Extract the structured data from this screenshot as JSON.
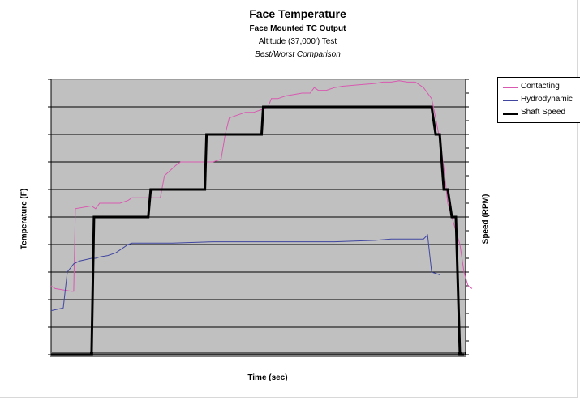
{
  "chart_data": {
    "type": "line",
    "title": "Face Temperature",
    "subtitles": [
      "Face Mounted TC Output",
      "Altitude (37,000') Test",
      "Best/Worst Comparison"
    ],
    "xlabel": "Time (sec)",
    "ylabel": "Temperature (F)",
    "y2label": "Speed (RPM)",
    "grid": true,
    "legend_position": "right",
    "series": [
      {
        "name": "Contacting",
        "axis": "left",
        "color": "#d85ab0",
        "x": [
          0,
          5,
          25,
          28,
          30,
          50,
          55,
          60,
          70,
          85,
          95,
          100,
          120,
          130,
          135,
          140,
          155,
          160,
          170,
          180,
          190,
          200,
          210,
          215,
          220,
          230,
          240,
          250,
          260,
          268,
          272,
          280,
          290,
          300,
          310,
          320,
          325,
          330,
          340,
          350,
          360,
          380,
          400,
          410,
          420,
          430,
          440,
          450,
          460,
          470,
          475,
          480,
          485,
          490,
          500,
          505,
          510,
          515,
          520
        ],
        "values": [
          2.5,
          2.4,
          2.3,
          2.3,
          5.3,
          5.4,
          5.3,
          5.5,
          5.5,
          5.5,
          5.6,
          5.7,
          5.7,
          5.7,
          5.7,
          6.5,
          6.9,
          7.0,
          7.0,
          7.0,
          7.0,
          7.0,
          7.1,
          8.0,
          8.6,
          8.7,
          8.8,
          8.8,
          8.9,
          9.0,
          9.3,
          9.3,
          9.4,
          9.45,
          9.5,
          9.5,
          9.7,
          9.6,
          9.6,
          9.7,
          9.75,
          9.8,
          9.85,
          9.9,
          9.9,
          9.95,
          9.9,
          9.9,
          9.7,
          9.3,
          8.6,
          7.8,
          6.8,
          5.5,
          4.5,
          4.0,
          3.0,
          2.5,
          2.4
        ]
      },
      {
        "name": "Hydrodynamic",
        "axis": "left",
        "color": "#4046a0",
        "x": [
          0,
          15,
          20,
          28,
          35,
          50,
          55,
          60,
          70,
          80,
          90,
          95,
          100,
          110,
          130,
          150,
          200,
          250,
          300,
          350,
          400,
          420,
          445,
          460,
          465,
          470,
          480
        ],
        "values": [
          1.6,
          1.7,
          3.0,
          3.3,
          3.4,
          3.5,
          3.5,
          3.55,
          3.6,
          3.7,
          3.9,
          4.0,
          4.05,
          4.05,
          4.05,
          4.05,
          4.1,
          4.1,
          4.1,
          4.1,
          4.15,
          4.2,
          4.2,
          4.2,
          4.35,
          3.0,
          2.9
        ]
      },
      {
        "name": "Shaft Speed",
        "axis": "right",
        "color": "#000000",
        "x": [
          0,
          5,
          50,
          53,
          55,
          120,
          123,
          190,
          192,
          260,
          262,
          470,
          475,
          480,
          485,
          490,
          495,
          500,
          505,
          510
        ],
        "values": [
          0,
          0,
          0,
          5,
          5,
          5,
          6,
          6,
          8,
          8,
          9,
          9,
          8,
          8,
          6,
          6,
          5,
          5,
          0,
          0
        ]
      }
    ],
    "xlim": [
      0,
      512
    ],
    "ylim": [
      0,
      10
    ],
    "y2lim": [
      0,
      10
    ]
  },
  "colors": {
    "plot_background": "#c0c0c0",
    "gridline": "#000000"
  }
}
